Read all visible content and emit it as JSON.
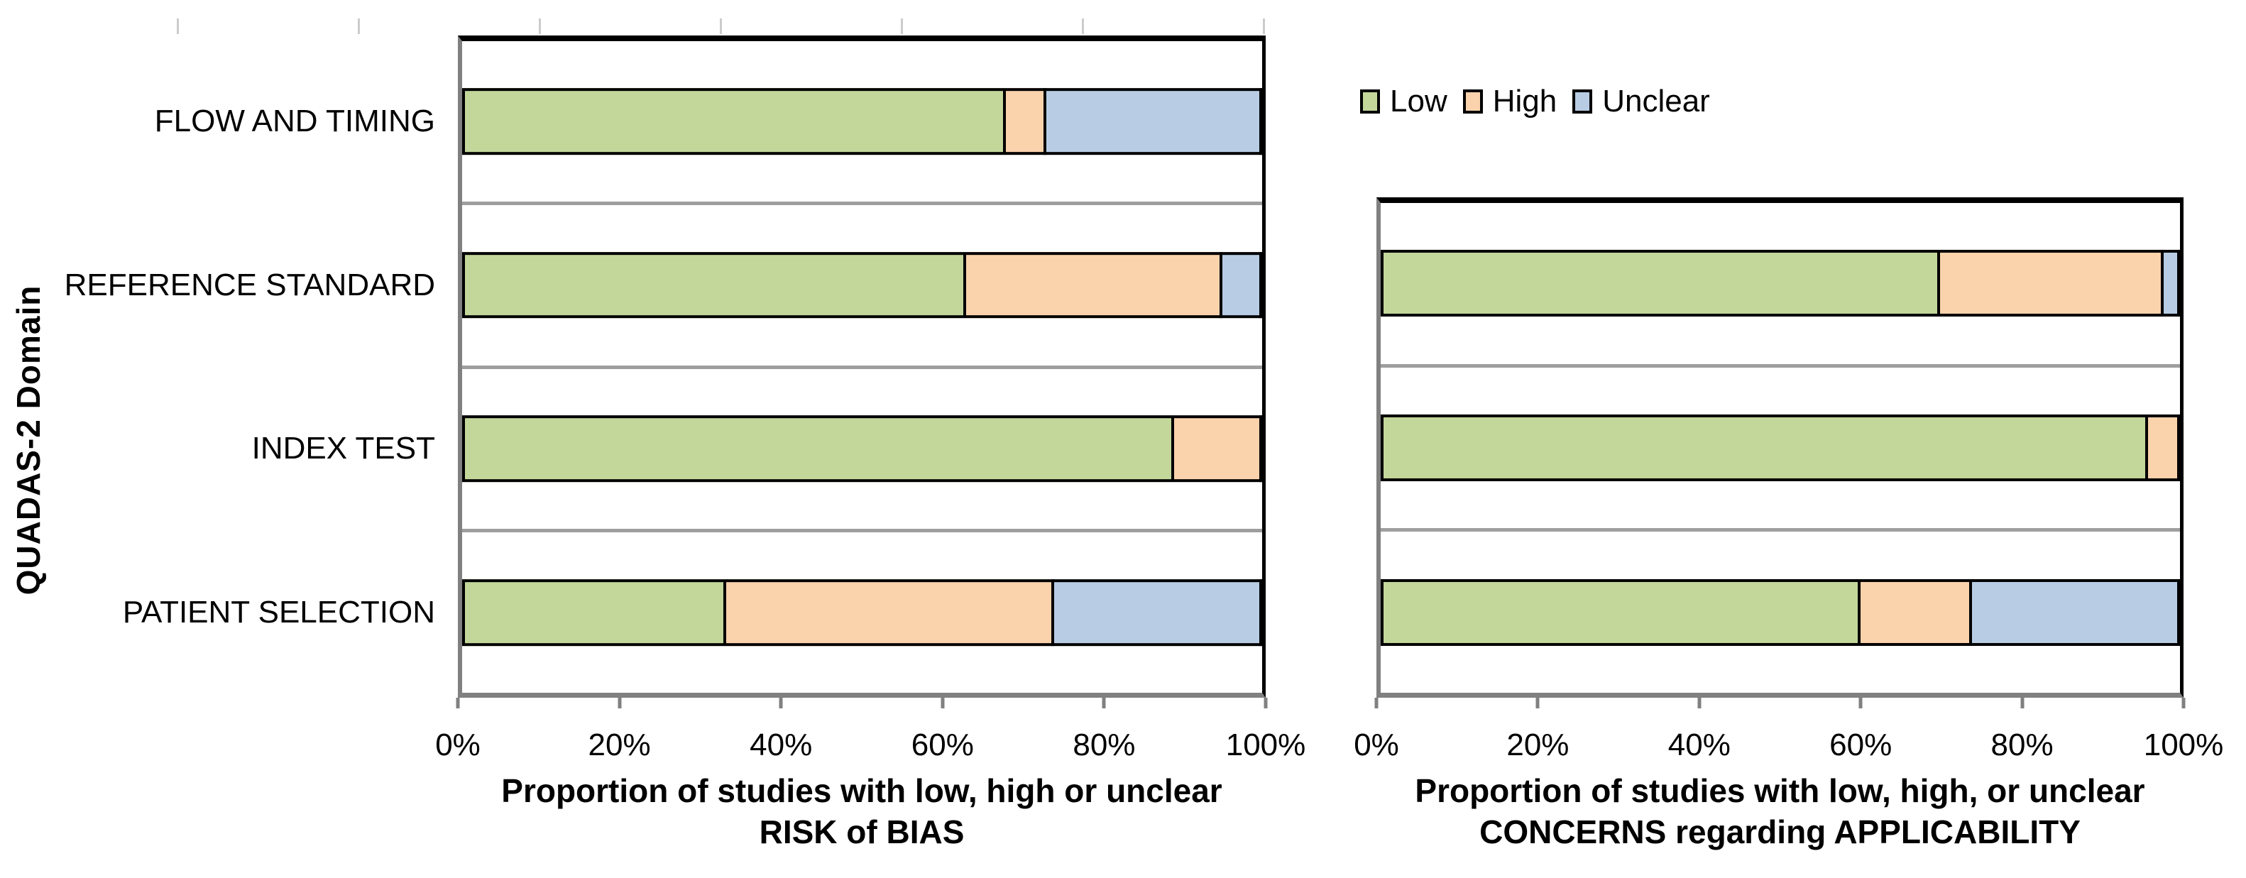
{
  "figure": {
    "y_axis_title": "QUADAS-2 Domain",
    "legend": [
      {
        "name": "Low",
        "color": "#C3D79B"
      },
      {
        "name": "High",
        "color": "#FAD2AC"
      },
      {
        "name": "Unclear",
        "color": "#B8CCE4"
      }
    ],
    "colors": {
      "low": "#C3D79B",
      "high": "#FAD2AC",
      "unclear": "#B8CCE4",
      "bar_border": "#000000",
      "plot_top_border": "#000000",
      "plot_right_border": "#000000",
      "axis_line": "#808080",
      "gridline": "#9e9e9e"
    }
  },
  "chart_data": [
    {
      "type": "bar",
      "orientation": "horizontal",
      "stacked": true,
      "title": "",
      "xlabel": [
        "Proportion of studies with low, high or unclear",
        "RISK of BIAS"
      ],
      "ylabel": "QUADAS-2 Domain",
      "xlim": [
        0,
        100
      ],
      "x_tick_unit": "percent",
      "x_ticks": [
        "0%",
        "20%",
        "40%",
        "60%",
        "80%",
        "100%"
      ],
      "grid": "horizontal band separators",
      "legend_position": "top-right",
      "categories": [
        "FLOW AND TIMING",
        "REFERENCE STANDARD",
        "INDEX TEST",
        "PATIENT SELECTION"
      ],
      "series": [
        {
          "name": "Low",
          "values": [
            68,
            63,
            89,
            33
          ]
        },
        {
          "name": "High",
          "values": [
            5,
            32,
            11,
            41
          ]
        },
        {
          "name": "Unclear",
          "values": [
            27,
            5,
            0,
            26
          ]
        }
      ]
    },
    {
      "type": "bar",
      "orientation": "horizontal",
      "stacked": true,
      "title": "",
      "xlabel": [
        "Proportion of studies with low, high, or unclear",
        "CONCERNS regarding APPLICABILITY"
      ],
      "ylabel": "",
      "xlim": [
        0,
        100
      ],
      "x_tick_unit": "percent",
      "x_ticks": [
        "0%",
        "20%",
        "40%",
        "60%",
        "80%",
        "100%"
      ],
      "grid": "horizontal band separators",
      "legend_position": "none",
      "categories": [
        "REFERENCE STANDARD",
        "INDEX TEST",
        "PATIENT SELECTION"
      ],
      "series": [
        {
          "name": "Low",
          "values": [
            70,
            96,
            60
          ]
        },
        {
          "name": "High",
          "values": [
            28,
            4,
            14
          ]
        },
        {
          "name": "Unclear",
          "values": [
            2,
            0,
            26
          ]
        }
      ]
    }
  ]
}
